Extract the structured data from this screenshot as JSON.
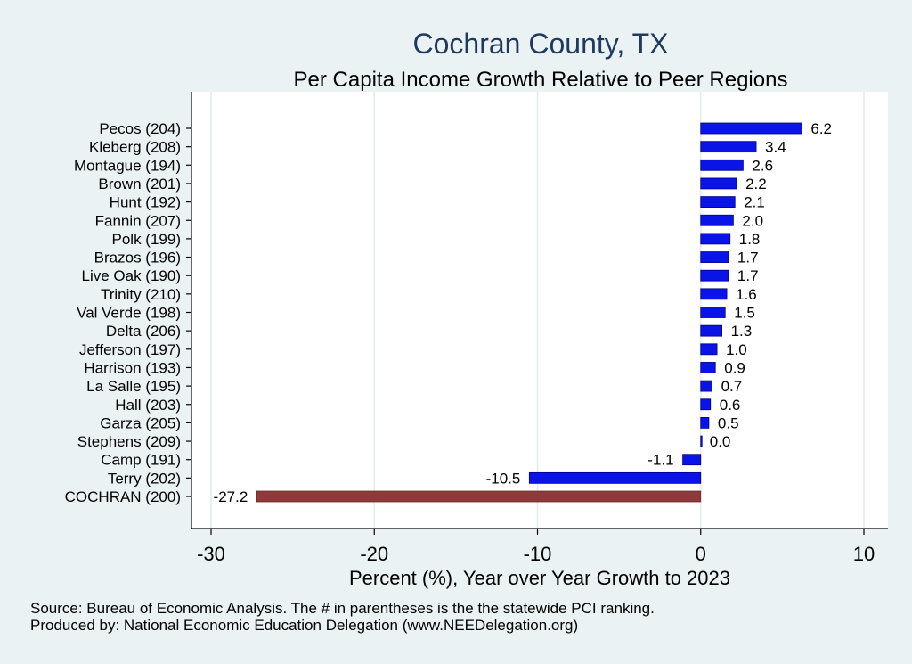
{
  "chart_data": {
    "type": "bar",
    "orientation": "horizontal",
    "title": "Cochran County, TX",
    "subtitle": "Per Capita Income Growth Relative to Peer Regions",
    "xlabel": "Percent (%), Year over Year Growth to 2023",
    "ylabel": "",
    "xlim": [
      -31,
      11
    ],
    "xticks": [
      -30,
      -20,
      -10,
      0,
      10
    ],
    "xtick_labels": [
      "-30",
      "-20",
      "-10",
      "0",
      "10"
    ],
    "grid": true,
    "categories": [
      "Pecos (204)",
      "Kleberg (208)",
      "Montague (194)",
      "Brown (201)",
      "Hunt (192)",
      "Fannin (207)",
      "Polk (199)",
      "Brazos (196)",
      "Live Oak (190)",
      "Trinity (210)",
      "Val Verde (198)",
      "Delta (206)",
      "Jefferson (197)",
      "Harrison (193)",
      "La Salle (195)",
      "Hall (203)",
      "Garza (205)",
      "Stephens (209)",
      "Camp (191)",
      "Terry (202)",
      "COCHRAN (200)"
    ],
    "values": [
      6.2,
      3.4,
      2.6,
      2.2,
      2.1,
      2.0,
      1.8,
      1.7,
      1.7,
      1.6,
      1.5,
      1.3,
      1.0,
      0.9,
      0.7,
      0.6,
      0.5,
      0.0,
      -1.1,
      -10.5,
      -27.2
    ],
    "value_labels": [
      "6.2",
      "3.4",
      "2.6",
      "2.2",
      "2.1",
      "2.0",
      "1.8",
      "1.7",
      "1.7",
      "1.6",
      "1.5",
      "1.3",
      "1.0",
      "0.9",
      "0.7",
      "0.6",
      "0.5",
      "0.0",
      "-1.1",
      "-10.5",
      "-27.2"
    ],
    "highlight_index": 20
  },
  "colors": {
    "background": "#eaf2f3",
    "plot_background": "#ffffff",
    "peer_bar": "#0a14e6",
    "highlight_bar": "#8f3a3a",
    "title": "#1f3a5f",
    "grid": "#e3ecee"
  },
  "source": {
    "line1": "Source: Bureau of Economic Analysis. The # in parentheses is the the statewide PCI ranking.",
    "line2": "Produced by: National Economic Education Delegation (www.NEEDelegation.org)"
  }
}
